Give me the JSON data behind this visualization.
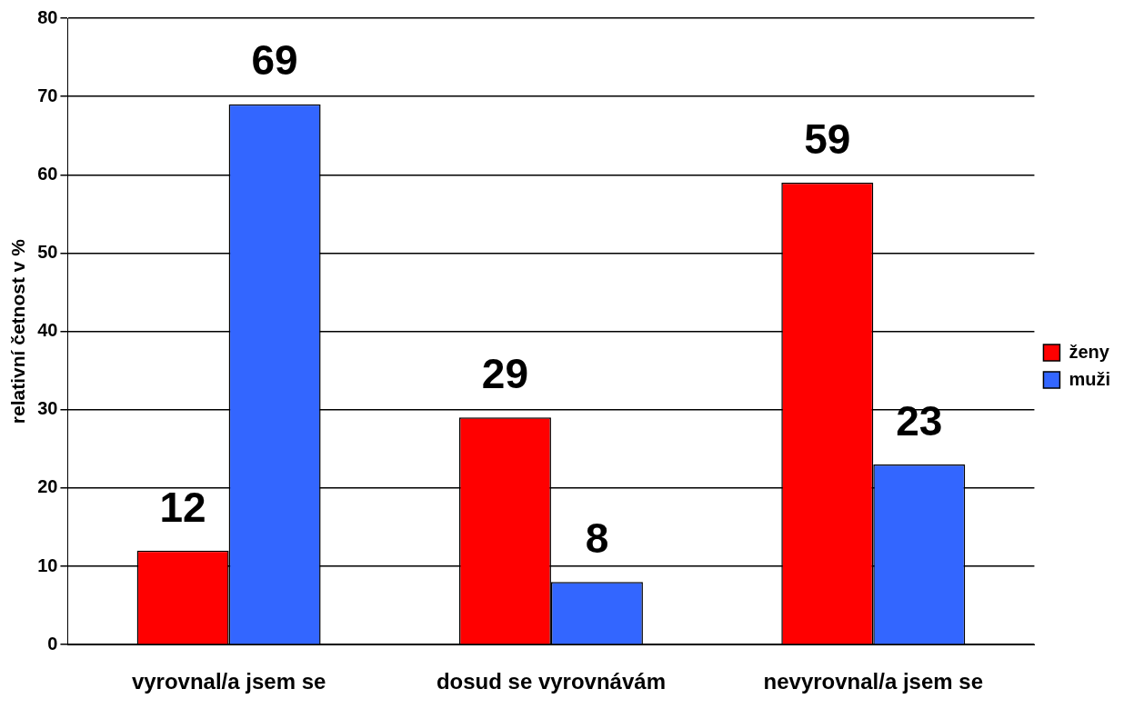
{
  "chart_data": {
    "type": "bar",
    "ylabel": "relativní četnost v %",
    "categories": [
      "vyrovnal/a jsem se",
      "dosud se vyrovnávám",
      "nevyrovnal/a jsem se"
    ],
    "series": [
      {
        "name": "ženy",
        "color": "#ff0000",
        "values": [
          12,
          29,
          59
        ]
      },
      {
        "name": "muži",
        "color": "#3366ff",
        "values": [
          69,
          8,
          23
        ]
      }
    ],
    "ylim": [
      0,
      80
    ],
    "yticks": [
      0,
      10,
      20,
      30,
      40,
      50,
      60,
      70,
      80
    ],
    "grid": "y",
    "legend": "right",
    "data_labels": true
  }
}
